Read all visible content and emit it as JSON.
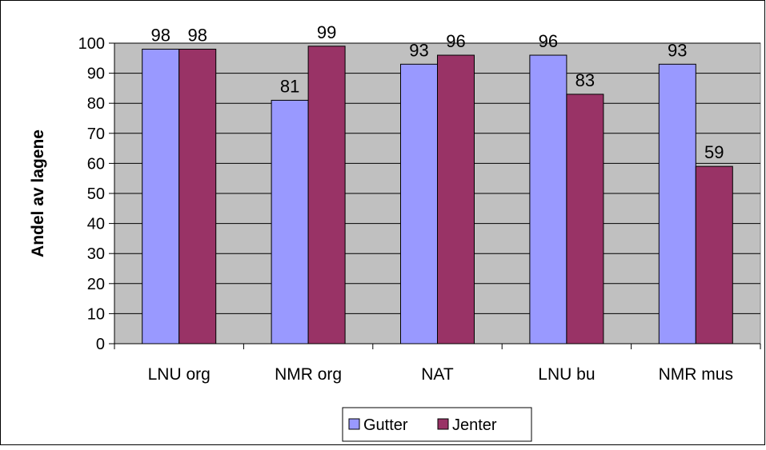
{
  "chart_data": {
    "type": "bar",
    "categories": [
      "LNU org",
      "NMR org",
      "NAT",
      "LNU bu",
      "NMR mus"
    ],
    "series": [
      {
        "name": "Gutter",
        "values": [
          98,
          81,
          93,
          96,
          93
        ],
        "color": "#9999FF"
      },
      {
        "name": "Jenter",
        "values": [
          98,
          99,
          96,
          83,
          59
        ],
        "color": "#993366"
      }
    ],
    "ylabel": "Andel av lagene",
    "xlabel": "",
    "ylim": [
      0,
      100
    ],
    "yticks": [
      "0",
      "10",
      "20",
      "30",
      "40",
      "50",
      "60",
      "70",
      "80",
      "90",
      "100"
    ],
    "grid": true,
    "plot_background": "#C0C0C0",
    "legend": "bottom-center",
    "data_labels": true
  }
}
